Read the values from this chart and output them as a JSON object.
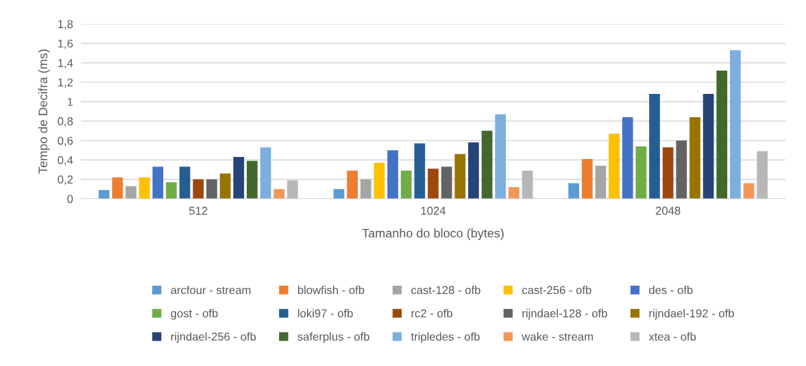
{
  "chart_data": {
    "type": "bar",
    "xlabel": "Tamanho do bloco (bytes)",
    "ylabel": "Tempo de Decifra (ms)",
    "categories": [
      "512",
      "1024",
      "2048"
    ],
    "series": [
      {
        "name": "arcfour - stream",
        "color": "#5b9bd5",
        "values": [
          0.09,
          0.1,
          0.16
        ]
      },
      {
        "name": "blowfish - ofb",
        "color": "#ed7d31",
        "values": [
          0.22,
          0.29,
          0.41
        ]
      },
      {
        "name": "cast-128 - ofb",
        "color": "#a5a5a5",
        "values": [
          0.13,
          0.2,
          0.34
        ]
      },
      {
        "name": "cast-256 - ofb",
        "color": "#ffc000",
        "values": [
          0.22,
          0.37,
          0.67
        ]
      },
      {
        "name": "des - ofb",
        "color": "#4472c4",
        "values": [
          0.33,
          0.5,
          0.84
        ]
      },
      {
        "name": "gost - ofb",
        "color": "#70ad47",
        "values": [
          0.17,
          0.29,
          0.54
        ]
      },
      {
        "name": "loki97 - ofb",
        "color": "#255e91",
        "values": [
          0.33,
          0.57,
          1.08
        ]
      },
      {
        "name": "rc2 - ofb",
        "color": "#9e480e",
        "values": [
          0.2,
          0.31,
          0.53
        ]
      },
      {
        "name": "rijndael-128 - ofb",
        "color": "#636363",
        "values": [
          0.2,
          0.33,
          0.6
        ]
      },
      {
        "name": "rijndael-192 - ofb",
        "color": "#997300",
        "values": [
          0.26,
          0.46,
          0.84
        ]
      },
      {
        "name": "rijndael-256 - ofb",
        "color": "#264478",
        "values": [
          0.43,
          0.58,
          1.08
        ]
      },
      {
        "name": "saferplus - ofb",
        "color": "#43682b",
        "values": [
          0.39,
          0.7,
          1.32
        ]
      },
      {
        "name": "tripledes - ofb",
        "color": "#7cafdd",
        "values": [
          0.53,
          0.87,
          1.53
        ]
      },
      {
        "name": "wake - stream",
        "color": "#f1975a",
        "values": [
          0.1,
          0.12,
          0.16
        ]
      },
      {
        "name": "xtea - ofb",
        "color": "#b7b7b7",
        "values": [
          0.19,
          0.29,
          0.49
        ]
      }
    ],
    "ylim": [
      0,
      1.8
    ],
    "yticks": [
      0,
      {
        "value": 0.2,
        "label": "0,2"
      },
      {
        "value": 0.4,
        "label": "0,4"
      },
      {
        "value": 0.6,
        "label": "0,6"
      },
      {
        "value": 0.8,
        "label": "0,8"
      },
      1,
      {
        "value": 1.2,
        "label": "1,2"
      },
      {
        "value": 1.4,
        "label": "1,4"
      },
      {
        "value": 1.6,
        "label": "1,6"
      },
      {
        "value": 1.8,
        "label": "1,8"
      }
    ],
    "grid": "y",
    "legend": "bottom"
  }
}
